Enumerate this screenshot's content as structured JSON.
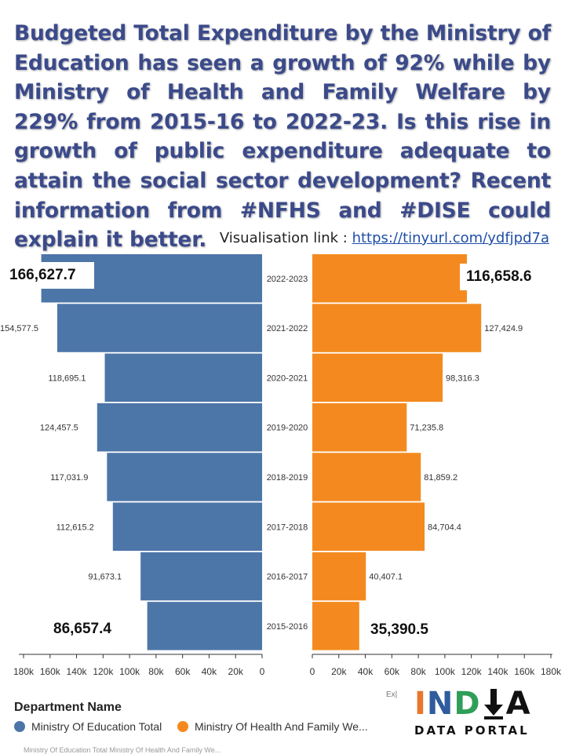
{
  "headline": "Budgeted Total Expenditure by the Ministry of Education has seen a growth of 92% while by Ministry of Health and Family Welfare by 229% from 2015-16 to 2022-23. Is this rise in growth of public expenditure adequate to attain the social sector development? Recent information from #NFHS and #DISE could explain it better.",
  "vis_link": {
    "label": "Visualisation link : ",
    "url": "https://tinyurl.com/ydfjpd7a"
  },
  "colors": {
    "education": "#4D76A8",
    "health": "#F48A1F",
    "headline": "#3B4A8A"
  },
  "chart_data": {
    "type": "bar",
    "orientation": "horizontal-butterfly",
    "categories": [
      "2022-2023",
      "2021-2022",
      "2020-2021",
      "2019-2020",
      "2018-2019",
      "2017-2018",
      "2016-2017",
      "2015-2016"
    ],
    "series": [
      {
        "name": "Ministry Of Education Total",
        "values": [
          166627.7,
          154577.5,
          118695.1,
          124457.5,
          117031.9,
          112615.2,
          91673.1,
          86657.4
        ],
        "labels": [
          "166,627.7",
          "154,577.5",
          "118,695.1",
          "124,457.5",
          "117,031.9",
          "112,615.2",
          "91,673.1",
          "86,657.4"
        ]
      },
      {
        "name": "Ministry Of Health And Family We...",
        "values": [
          116658.6,
          127424.9,
          98316.3,
          71235.8,
          81859.2,
          84704.4,
          40407.1,
          35390.5
        ],
        "labels": [
          "116,658.6",
          "127,424.9",
          "98,316.3",
          "71,235.8",
          "81,859.2",
          "84,704.4",
          "40,407.1",
          "35,390.5"
        ]
      }
    ],
    "left_axis": {
      "ticks": [
        "180k",
        "160k",
        "140k",
        "120k",
        "100k",
        "80k",
        "60k",
        "40k",
        "20k",
        "0"
      ],
      "range": [
        0,
        180000
      ],
      "direction": "reversed"
    },
    "right_axis": {
      "ticks": [
        "0",
        "20k",
        "40k",
        "60k",
        "80k",
        "100k",
        "120k",
        "140k",
        "160k",
        "180k"
      ],
      "range": [
        0,
        180000
      ],
      "title": "Ex|"
    },
    "callouts": [
      "166,627.7",
      "116,658.6",
      "86,657.4",
      "35,390.5"
    ],
    "legend": {
      "title": "Department Name",
      "placement": "bottom-left",
      "items": [
        "Ministry Of Education Total",
        "Ministry Of Health And Family We..."
      ]
    }
  },
  "logo": {
    "name": "INDIA",
    "tagline": "DATA PORTAL"
  },
  "footer_strip": "Ministry Of Education Total     Ministry Of Health And Family We..."
}
